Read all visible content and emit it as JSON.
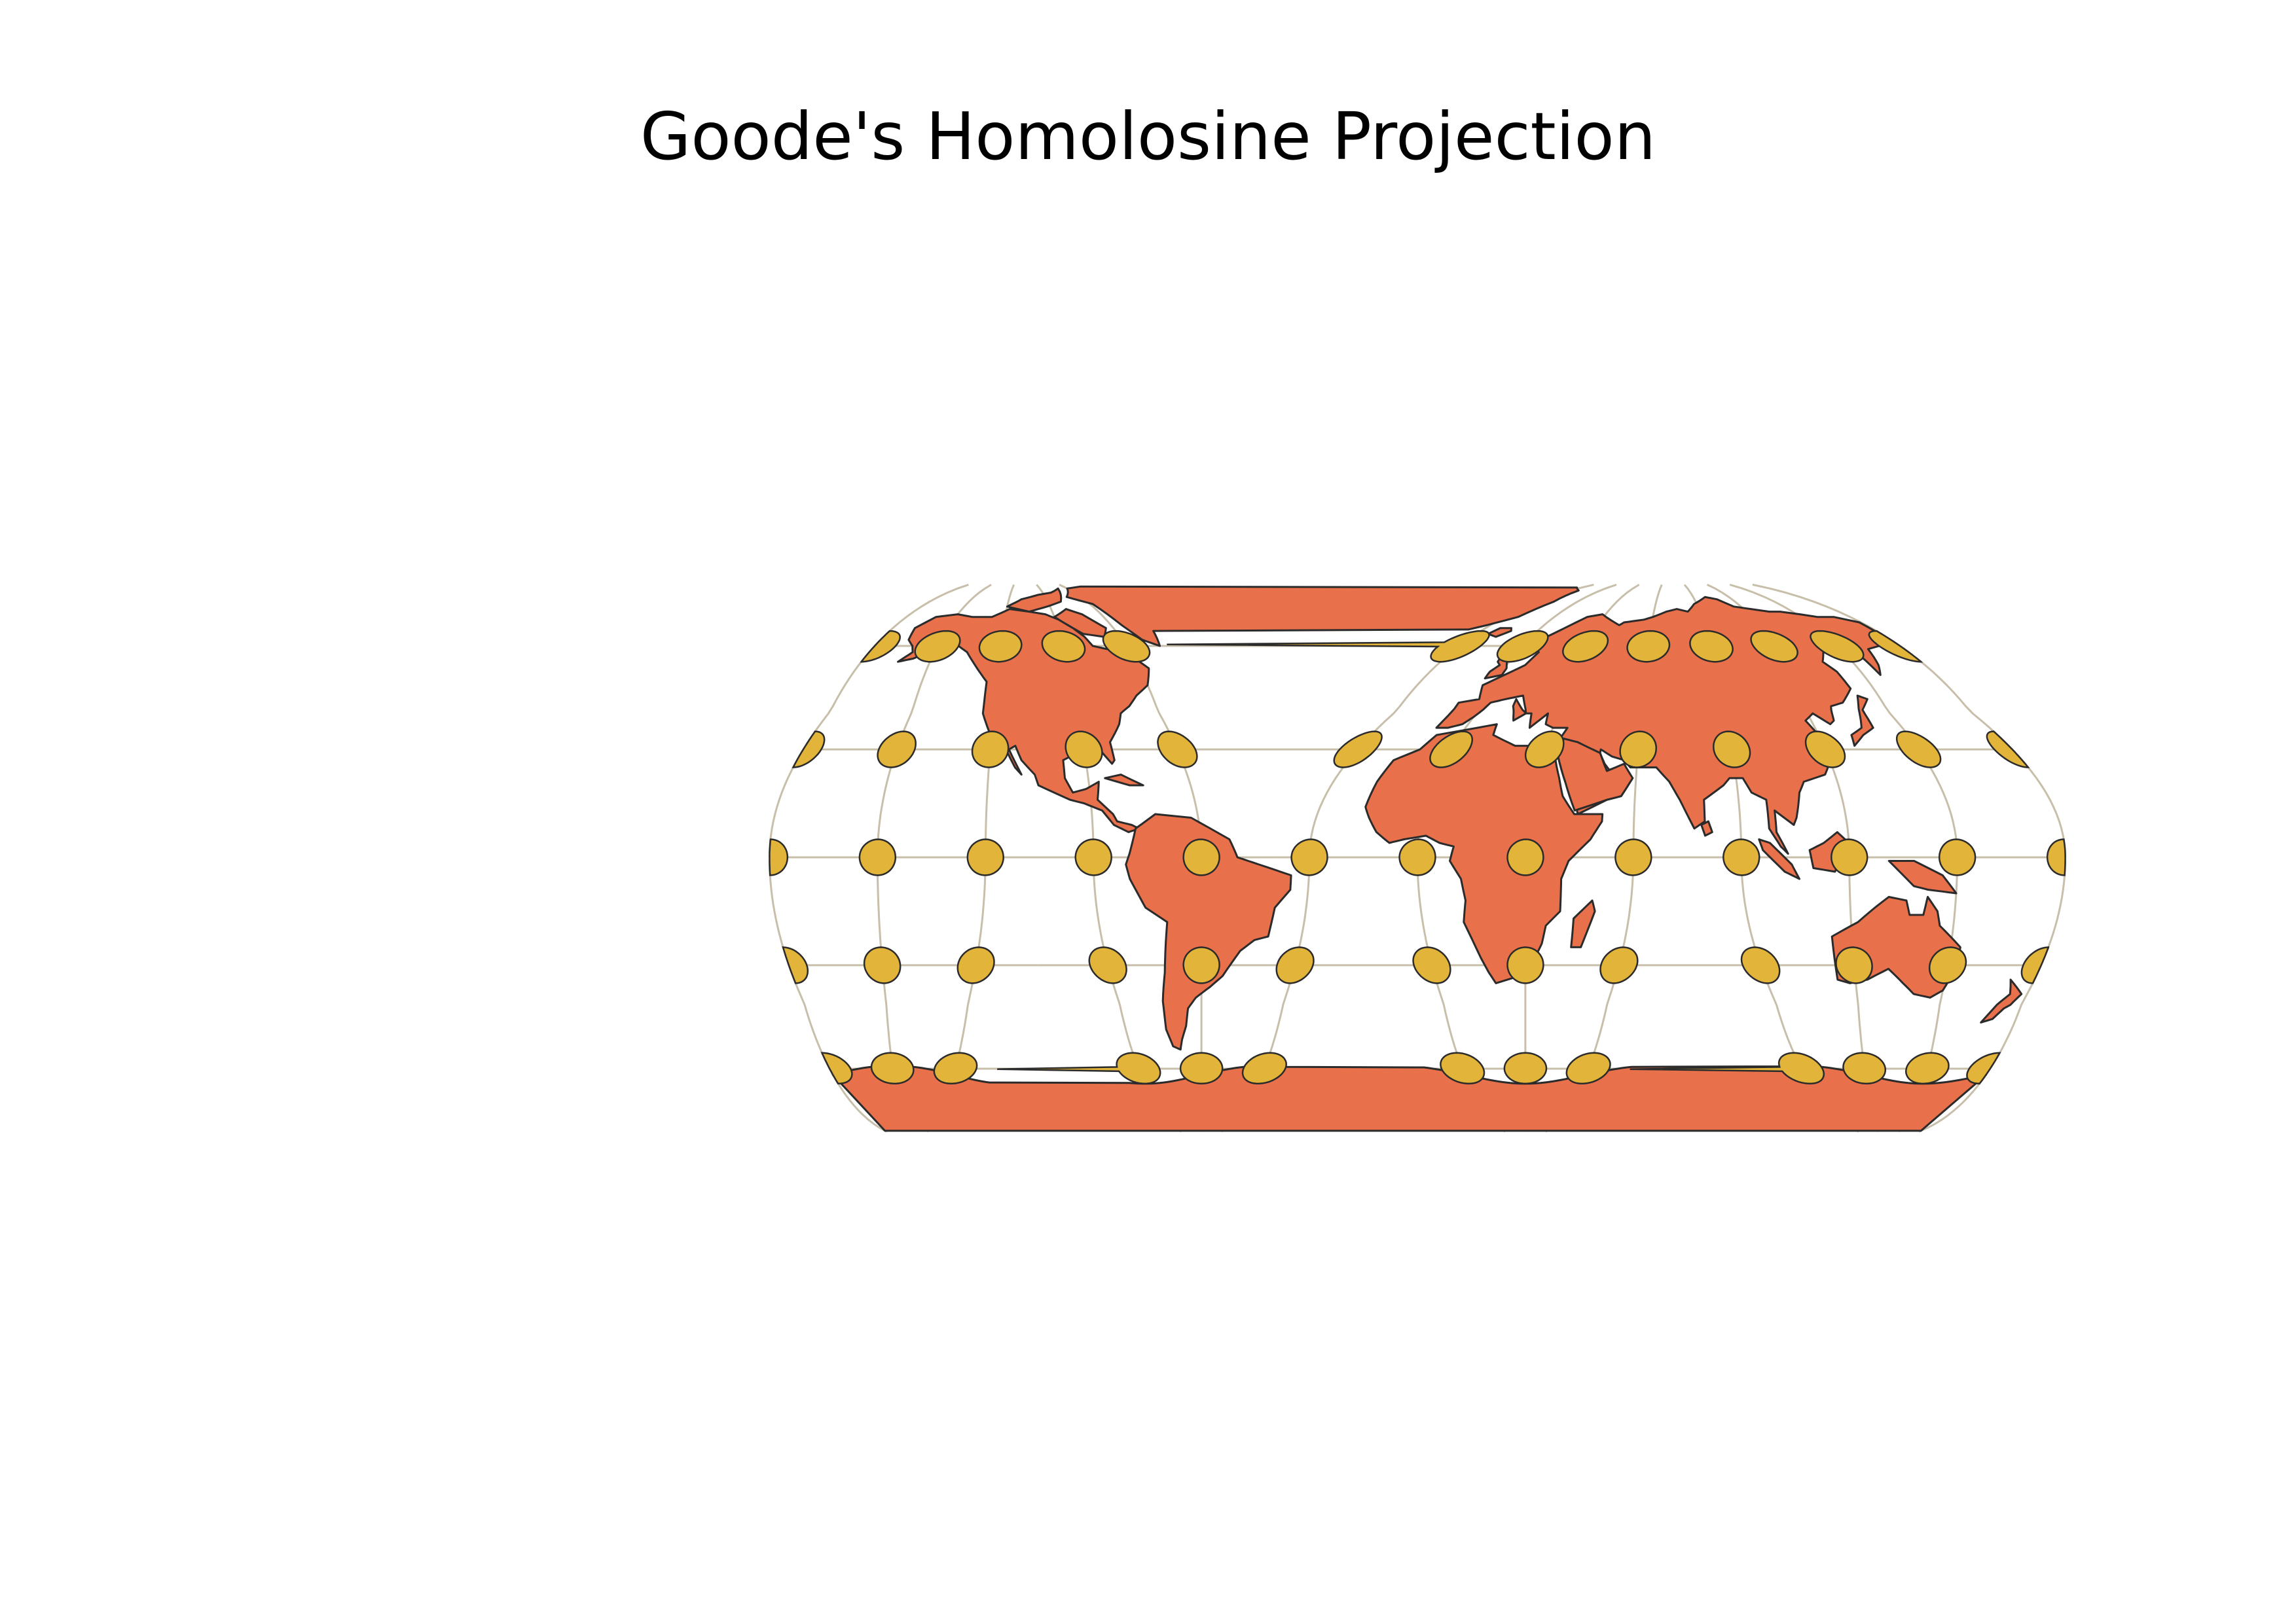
{
  "title": "Goode's Homolosine Projection",
  "colors": {
    "background": "#ffffff",
    "land": "#e8704a",
    "land_stroke": "#2b2b2b",
    "indicatrix": "#e3b43a",
    "indicatrix_stroke": "#2b2b2b",
    "graticule": "#c8bfaa"
  },
  "map": {
    "projection": "Goode's Homolosine (interrupted)",
    "graticule_latitudes": [
      60,
      30,
      0,
      -30,
      -60
    ],
    "lobes_north": [
      [
        -180,
        -40
      ],
      [
        -40,
        180
      ]
    ],
    "lobes_south": [
      [
        -180,
        -100
      ],
      [
        -100,
        -20
      ],
      [
        -20,
        80
      ],
      [
        80,
        180
      ]
    ],
    "indicatrix_longitudes": [
      -180,
      -150,
      -120,
      -90,
      -60,
      -30,
      0,
      30,
      60,
      90,
      120,
      150,
      180
    ]
  }
}
